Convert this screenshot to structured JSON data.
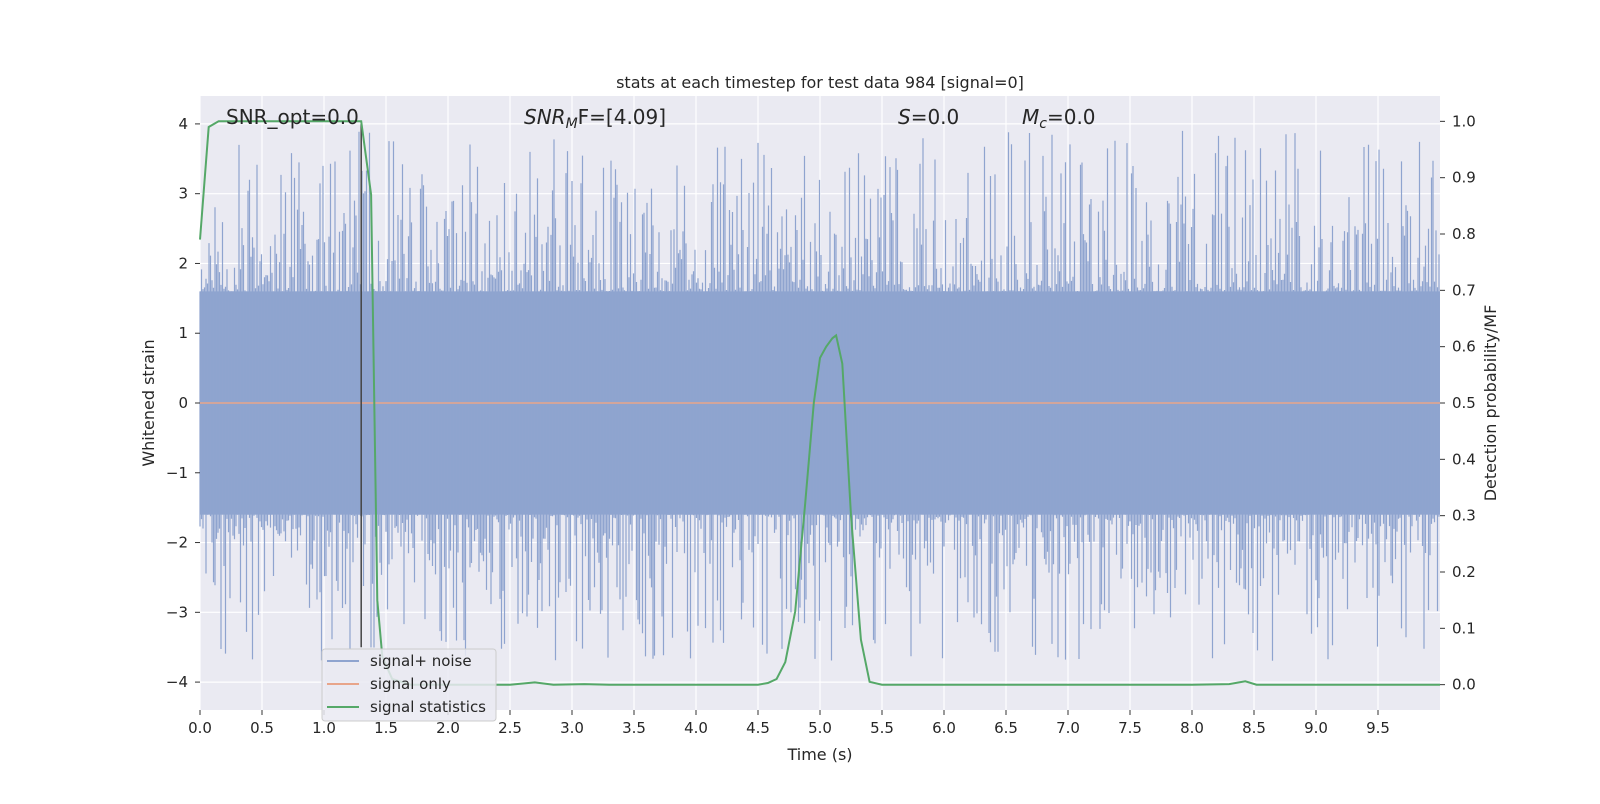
{
  "chart_data": {
    "type": "line",
    "title": "stats at each timestep for test data 984 [signal=0]",
    "xlabel": "Time (s)",
    "ylabel": "Whitened strain",
    "y2label": "Detection probability/MF",
    "xlim": [
      0.0,
      10.0
    ],
    "ylim": [
      -4.4,
      4.4
    ],
    "y2lim": [
      -0.045,
      1.045
    ],
    "grid": true,
    "legend_position": "lower-left",
    "xticks": [
      "0.0",
      "0.5",
      "1.0",
      "1.5",
      "2.0",
      "2.5",
      "3.0",
      "3.5",
      "4.0",
      "4.5",
      "5.0",
      "5.5",
      "6.0",
      "6.5",
      "7.0",
      "7.5",
      "8.0",
      "8.5",
      "9.0",
      "9.5"
    ],
    "yticks": [
      "4",
      "3",
      "2",
      "1",
      "0",
      "−1",
      "−2",
      "−3",
      "−4"
    ],
    "y2ticks": [
      "1.0",
      "0.9",
      "0.8",
      "0.7",
      "0.6",
      "0.5",
      "0.4",
      "0.3",
      "0.2",
      "0.1",
      "0.0"
    ],
    "annotations": {
      "snr_opt": "SNR_opt=0.0",
      "snr_mf_var": "SNR",
      "snr_mf_sub": "M",
      "snr_mf_rest": "F=[4.09]",
      "s_var": "S",
      "s_rest": "=0.0",
      "mc_var": "M",
      "mc_sub": "c",
      "mc_rest": "=0.0"
    },
    "vline_x": 1.3,
    "series": [
      {
        "name": "signal+ noise",
        "color": "#8fa4cf",
        "description": "whitened noise spanning approx -4 to 4, mostly within -1.6 to 1.6"
      },
      {
        "name": "signal only",
        "color": "#e8a58a",
        "values_constant": 0.0
      },
      {
        "name": "signal statistics",
        "color": "#55a868",
        "axis": "right",
        "x": [
          0.0,
          0.07,
          0.15,
          0.25,
          0.5,
          0.75,
          1.0,
          1.2,
          1.3,
          1.38,
          1.43,
          1.47,
          1.55,
          1.7,
          2.0,
          2.5,
          2.7,
          2.85,
          3.1,
          3.3,
          4.0,
          4.5,
          4.58,
          4.65,
          4.72,
          4.8,
          4.88,
          4.95,
          5.0,
          5.05,
          5.1,
          5.13,
          5.18,
          5.25,
          5.33,
          5.4,
          5.5,
          6.0,
          7.0,
          8.0,
          8.3,
          8.43,
          8.52,
          9.0,
          10.0
        ],
        "y": [
          0.79,
          0.99,
          1.0,
          1.0,
          1.0,
          1.0,
          1.0,
          1.0,
          1.0,
          0.87,
          0.15,
          0.05,
          0.01,
          0.0,
          0.0,
          0.0,
          0.004,
          0.0,
          0.001,
          0.0,
          0.0,
          0.0,
          0.003,
          0.01,
          0.04,
          0.13,
          0.32,
          0.5,
          0.58,
          0.6,
          0.615,
          0.62,
          0.57,
          0.3,
          0.08,
          0.005,
          0.0,
          0.0,
          0.0,
          0.0,
          0.001,
          0.006,
          0.0,
          0.0,
          0.0
        ]
      }
    ]
  }
}
